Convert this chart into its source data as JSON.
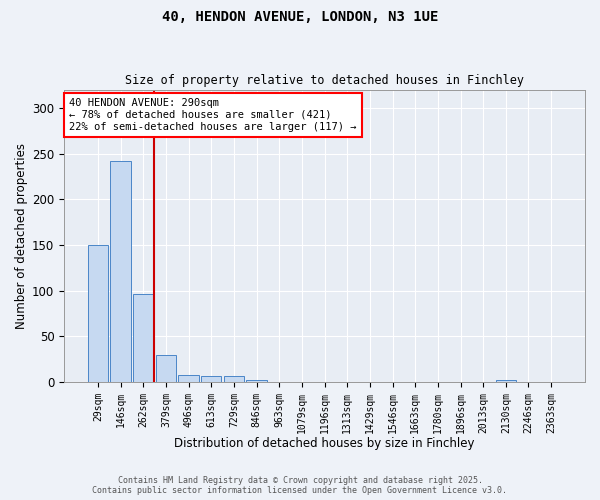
{
  "title1": "40, HENDON AVENUE, LONDON, N3 1UE",
  "title2": "Size of property relative to detached houses in Finchley",
  "xlabel": "Distribution of detached houses by size in Finchley",
  "ylabel": "Number of detached properties",
  "bar_labels": [
    "29sqm",
    "146sqm",
    "262sqm",
    "379sqm",
    "496sqm",
    "613sqm",
    "729sqm",
    "846sqm",
    "963sqm",
    "1079sqm",
    "1196sqm",
    "1313sqm",
    "1429sqm",
    "1546sqm",
    "1663sqm",
    "1780sqm",
    "1896sqm",
    "2013sqm",
    "2130sqm",
    "2246sqm",
    "2363sqm"
  ],
  "bar_values": [
    150,
    242,
    96,
    29,
    8,
    7,
    7,
    2,
    0,
    0,
    0,
    0,
    0,
    0,
    0,
    0,
    0,
    0,
    2,
    0,
    0
  ],
  "bar_color": "#c6d9f1",
  "bar_edgecolor": "#4a86c8",
  "bg_color": "#e8edf4",
  "fig_bg_color": "#eef2f8",
  "annotation_text": "40 HENDON AVENUE: 290sqm\n← 78% of detached houses are smaller (421)\n22% of semi-detached houses are larger (117) →",
  "vline_color": "#cc0000",
  "vline_x": 2.45,
  "ylim": [
    0,
    320
  ],
  "yticks": [
    0,
    50,
    100,
    150,
    200,
    250,
    300
  ],
  "footer1": "Contains HM Land Registry data © Crown copyright and database right 2025.",
  "footer2": "Contains public sector information licensed under the Open Government Licence v3.0."
}
